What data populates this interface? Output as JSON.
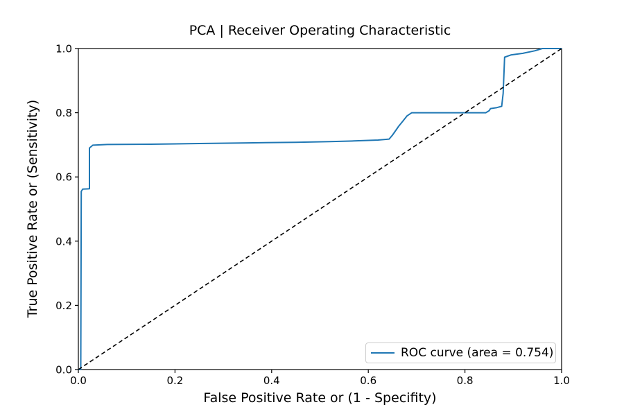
{
  "chart_data": {
    "type": "line",
    "title": "PCA | Receiver Operating Characteristic",
    "xlabel": "False Positive Rate or (1 - Specifity)",
    "ylabel": "True Positive Rate or (Sensitivity)",
    "xlim": [
      0,
      1
    ],
    "ylim": [
      0,
      1
    ],
    "xticks": [
      0.0,
      0.2,
      0.4,
      0.6,
      0.8,
      1.0
    ],
    "yticks": [
      0.0,
      0.2,
      0.4,
      0.6,
      0.8,
      1.0
    ],
    "xtick_labels": [
      "0.0",
      "0.2",
      "0.4",
      "0.6",
      "0.8",
      "1.0"
    ],
    "ytick_labels": [
      "0.0",
      "0.2",
      "0.4",
      "0.6",
      "0.8",
      "1.0"
    ],
    "grid": false,
    "legend": {
      "position": "lower right",
      "entries": [
        {
          "label": "ROC curve (area = 0.754)",
          "color": "#1f77b4",
          "style": "solid"
        }
      ]
    },
    "series": [
      {
        "name": "ROC curve",
        "color": "#1f77b4",
        "style": "solid",
        "width": 2,
        "points": [
          [
            0.0,
            0.0
          ],
          [
            0.005,
            0.0
          ],
          [
            0.006,
            0.555
          ],
          [
            0.009,
            0.562
          ],
          [
            0.023,
            0.563
          ],
          [
            0.023,
            0.69
          ],
          [
            0.03,
            0.699
          ],
          [
            0.06,
            0.701
          ],
          [
            0.15,
            0.702
          ],
          [
            0.25,
            0.704
          ],
          [
            0.35,
            0.706
          ],
          [
            0.45,
            0.708
          ],
          [
            0.52,
            0.71
          ],
          [
            0.57,
            0.712
          ],
          [
            0.62,
            0.715
          ],
          [
            0.643,
            0.718
          ],
          [
            0.65,
            0.73
          ],
          [
            0.663,
            0.758
          ],
          [
            0.672,
            0.775
          ],
          [
            0.68,
            0.79
          ],
          [
            0.69,
            0.8
          ],
          [
            0.843,
            0.8
          ],
          [
            0.85,
            0.806
          ],
          [
            0.853,
            0.813
          ],
          [
            0.866,
            0.816
          ],
          [
            0.876,
            0.82
          ],
          [
            0.879,
            0.86
          ],
          [
            0.882,
            0.973
          ],
          [
            0.895,
            0.98
          ],
          [
            0.92,
            0.985
          ],
          [
            0.945,
            0.993
          ],
          [
            0.96,
            1.0
          ],
          [
            1.0,
            1.0
          ]
        ]
      },
      {
        "name": "chance diagonal",
        "color": "#000000",
        "style": "dashed",
        "width": 1.6,
        "points": [
          [
            0.0,
            0.0
          ],
          [
            1.0,
            1.0
          ]
        ]
      }
    ]
  }
}
